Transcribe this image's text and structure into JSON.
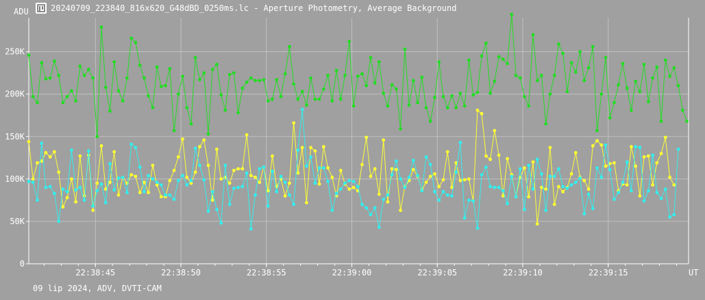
{
  "window": {
    "title": "20240709_223840_816x620_G48dBD_0250ms.lc - Aperture Photometry, Average Background",
    "icon": "chart-app-icon"
  },
  "footer": {
    "text": "09 lip 2024, ADV, DVTI-CAM"
  },
  "colors": {
    "background": "#a0a0a0",
    "plot_background": "#a0a0a0",
    "grid": "#c0c0c0",
    "axis": "#ffffff",
    "text": "#ffffff",
    "series_green": "#22dd22",
    "series_yellow": "#ffff33",
    "series_cyan": "#33eeee"
  },
  "chart_data": {
    "type": "line",
    "ylabel": "ADU",
    "xlabel": "UT",
    "ylim": [
      0,
      290000
    ],
    "y_ticks": [
      0,
      50000,
      100000,
      150000,
      200000,
      250000
    ],
    "y_tick_labels": [
      "0",
      "50K",
      "100K",
      "150K",
      "200K",
      "250K"
    ],
    "x_tick_labels": [
      "22:38:45",
      "22:38:50",
      "22:38:55",
      "22:39:00",
      "22:39:05",
      "22:39:10",
      "22:39:15"
    ],
    "x_tick_seconds": [
      45,
      50,
      55,
      60,
      65,
      70,
      75
    ],
    "xlim": [
      41.1,
      79.7
    ],
    "grid": true,
    "legend": "none",
    "series": [
      {
        "color": "#22dd22",
        "x_start": 41.1,
        "x_step": 0.25,
        "values": [
          246000,
          197000,
          190000,
          237000,
          218000,
          219000,
          239000,
          222000,
          190000,
          197000,
          204000,
          192000,
          233000,
          222000,
          229000,
          219000,
          150000,
          279000,
          208000,
          180000,
          238000,
          204000,
          192000,
          219000,
          266000,
          261000,
          234000,
          219000,
          198000,
          184000,
          232000,
          209000,
          210000,
          230000,
          157000,
          200000,
          221000,
          184000,
          165000,
          243000,
          217000,
          225000,
          153000,
          229000,
          235000,
          199000,
          181000,
          223000,
          225000,
          178000,
          207000,
          214000,
          219000,
          216000,
          216000,
          217000,
          192000,
          194000,
          217000,
          197000,
          224000,
          256000,
          212000,
          194000,
          203000,
          187000,
          219000,
          194000,
          194000,
          206000,
          222000,
          192000,
          228000,
          194000,
          222000,
          262000,
          186000,
          221000,
          224000,
          210000,
          243000,
          213000,
          238000,
          201000,
          186000,
          211000,
          206000,
          159000,
          253000,
          187000,
          216000,
          190000,
          220000,
          184000,
          168000,
          196000,
          238000,
          197000,
          184000,
          198000,
          184000,
          201000,
          186000,
          240000,
          199000,
          202000,
          245000,
          260000,
          201000,
          215000,
          244000,
          241000,
          236000,
          294000,
          222000,
          219000,
          197000,
          186000,
          270000,
          216000,
          222000,
          165000,
          200000,
          222000,
          259000,
          248000,
          203000,
          237000,
          226000,
          250000,
          216000,
          231000,
          256000,
          157000,
          200000,
          243000,
          172000,
          190000,
          211000,
          236000,
          207000,
          181000,
          215000,
          203000,
          235000,
          191000,
          219000,
          232000,
          168000,
          240000,
          221000,
          231000,
          210000,
          181000,
          168000
        ]
      },
      {
        "color": "#ffff33",
        "x_start": 41.1,
        "x_step": 0.25,
        "values": [
          144000,
          100000,
          119000,
          121000,
          131000,
          126000,
          132000,
          108000,
          67000,
          78000,
          100000,
          73000,
          127000,
          80000,
          128000,
          63000,
          95000,
          139000,
          88000,
          96000,
          132000,
          81000,
          102000,
          95000,
          105000,
          103000,
          84000,
          96000,
          84000,
          116000,
          93000,
          79000,
          79000,
          98000,
          110000,
          126000,
          147000,
          102000,
          95000,
          108000,
          138000,
          146000,
          116000,
          75000,
          135000,
          100000,
          102000,
          95000,
          110000,
          112000,
          112000,
          152000,
          104000,
          102000,
          96000,
          114000,
          86000,
          127000,
          91000,
          100000,
          80000,
          95000,
          166000,
          107000,
          137000,
          72000,
          137000,
          133000,
          94000,
          138000,
          113000,
          102000,
          80000,
          110000,
          94000,
          88000,
          90000,
          86000,
          117000,
          149000,
          103000,
          112000,
          82000,
          146000,
          73000,
          112000,
          111000,
          63000,
          91000,
          98000,
          111000,
          103000,
          87000,
          96000,
          103000,
          106000,
          91000,
          99000,
          132000,
          90000,
          119000,
          98000,
          99000,
          100000,
          74000,
          181000,
          177000,
          127000,
          123000,
          157000,
          128000,
          80000,
          124000,
          105000,
          79000,
          102000,
          113000,
          79000,
          120000,
          47000,
          90000,
          88000,
          137000,
          70000,
          91000,
          85000,
          90000,
          106000,
          131000,
          102000,
          98000,
          88000,
          139000,
          145000,
          140000,
          115000,
          118000,
          119000,
          86000,
          94000,
          93000,
          138000,
          115000,
          80000,
          126000,
          127000,
          93000,
          119000,
          130000,
          149000,
          102000,
          93000
        ]
      },
      {
        "color": "#33eeee",
        "x_start": 41.1,
        "x_step": 0.25,
        "values": [
          97000,
          96000,
          75000,
          142000,
          90000,
          91000,
          83000,
          50000,
          88000,
          85000,
          134000,
          87000,
          90000,
          75000,
          133000,
          68000,
          86000,
          94000,
          72000,
          118000,
          87000,
          101000,
          102000,
          84000,
          141000,
          137000,
          114000,
          85000,
          104000,
          100000,
          96000,
          93000,
          81000,
          81000,
          76000,
          98000,
          104000,
          93000,
          98000,
          136000,
          116000,
          99000,
          62000,
          85000,
          64000,
          48000,
          116000,
          70000,
          89000,
          90000,
          91000,
          107000,
          41000,
          81000,
          112000,
          114000,
          68000,
          109000,
          85000,
          103000,
          96000,
          81000,
          70000,
          134000,
          182000,
          115000,
          126000,
          95000,
          113000,
          113000,
          97000,
          63000,
          83000,
          88000,
          95000,
          98000,
          97000,
          91000,
          70000,
          66000,
          58000,
          66000,
          43000,
          76000,
          81000,
          105000,
          121000,
          100000,
          90000,
          102000,
          122000,
          104000,
          86000,
          126000,
          117000,
          85000,
          75000,
          85000,
          81000,
          80000,
          108000,
          143000,
          54000,
          75000,
          74000,
          42000,
          105000,
          114000,
          91000,
          90000,
          90000,
          86000,
          71000,
          103000,
          79000,
          112000,
          64000,
          116000,
          88000,
          123000,
          106000,
          63000,
          103000,
          103000,
          112000,
          91000,
          89000,
          93000,
          96000,
          101000,
          59000,
          82000,
          65000,
          113000,
          102000,
          140000,
          111000,
          76000,
          84000,
          96000,
          120000,
          86000,
          138000,
          137000,
          74000,
          86000,
          128000,
          84000,
          77000,
          88000,
          55000,
          58000,
          135000
        ]
      }
    ]
  }
}
